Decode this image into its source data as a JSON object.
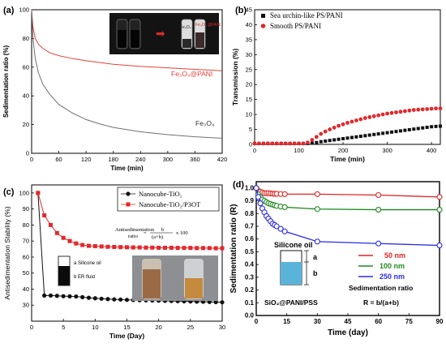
{
  "chart_data": [
    {
      "panel": "(a)",
      "type": "line",
      "xlabel": "Time (min)",
      "ylabel": "Sedimentation ratio (%)",
      "xlim": [
        0,
        420
      ],
      "ylim": [
        0,
        100
      ],
      "xticks": [
        0,
        60,
        120,
        180,
        240,
        300,
        360,
        420
      ],
      "yticks": [
        0,
        20,
        40,
        60,
        80,
        100
      ],
      "series": [
        {
          "name": "Fe3O4@PANI",
          "color": "#e8413c",
          "x": [
            0,
            3,
            8,
            15,
            25,
            40,
            60,
            90,
            120,
            180,
            240,
            300,
            360,
            420
          ],
          "y": [
            100,
            88,
            80,
            76,
            73,
            70,
            68,
            66,
            64.5,
            62,
            60.5,
            59.5,
            58.5,
            57.5
          ]
        },
        {
          "name": "Fe3O4",
          "color": "#707070",
          "x": [
            0,
            3,
            8,
            15,
            25,
            40,
            60,
            90,
            120,
            150,
            180,
            240,
            300,
            360,
            420
          ],
          "y": [
            100,
            80,
            66,
            56,
            48,
            41,
            34,
            28,
            23.5,
            20.5,
            18,
            15,
            13,
            11.5,
            10.5
          ]
        }
      ],
      "labels": [
        "Fe3O4@PANI",
        "Fe3O4"
      ],
      "inset_labels": [
        "Fe3O4",
        "Fe3O4 @PANI"
      ]
    },
    {
      "panel": "(b)",
      "type": "scatter",
      "xlabel": "Time (min)",
      "ylabel": "Transmission (%)",
      "xlim": [
        0,
        420
      ],
      "ylim": [
        0,
        45
      ],
      "xticks": [
        0,
        100,
        200,
        300,
        400
      ],
      "yticks": [
        0,
        5,
        10,
        15,
        20,
        25,
        30,
        35,
        40,
        45
      ],
      "legend": "top-left",
      "series": [
        {
          "name": "Sea urchin-like PS/PANI",
          "color": "#111111",
          "marker": "square",
          "x": [
            0,
            10,
            20,
            30,
            40,
            50,
            60,
            70,
            80,
            90,
            100,
            110,
            120,
            130,
            140,
            150,
            160,
            170,
            180,
            190,
            200,
            210,
            220,
            230,
            240,
            250,
            260,
            270,
            280,
            290,
            300,
            310,
            320,
            330,
            340,
            350,
            360,
            370,
            380,
            390,
            400,
            410,
            420
          ],
          "y": [
            0.3,
            0.3,
            0.3,
            0.3,
            0.3,
            0.3,
            0.3,
            0.3,
            0.3,
            0.3,
            0.3,
            0.3,
            0.3,
            0.4,
            0.6,
            0.9,
            1.1,
            1.3,
            1.5,
            1.7,
            1.9,
            2.1,
            2.3,
            2.5,
            2.7,
            2.9,
            3.1,
            3.3,
            3.5,
            3.7,
            3.9,
            4.1,
            4.3,
            4.5,
            4.7,
            4.9,
            5.1,
            5.3,
            5.5,
            5.7,
            5.9,
            6.0,
            6.1
          ]
        },
        {
          "name": "Smooth PS/PANI",
          "color": "#e3272b",
          "marker": "circle",
          "x": [
            0,
            10,
            20,
            30,
            40,
            50,
            60,
            70,
            80,
            90,
            100,
            110,
            120,
            130,
            140,
            150,
            160,
            170,
            180,
            190,
            200,
            210,
            220,
            230,
            240,
            250,
            260,
            270,
            280,
            290,
            300,
            310,
            320,
            330,
            340,
            350,
            360,
            370,
            380,
            390,
            400,
            410,
            420
          ],
          "y": [
            0.3,
            0.3,
            0.3,
            0.3,
            0.3,
            0.3,
            0.3,
            0.3,
            0.3,
            0.3,
            0.3,
            0.3,
            0.6,
            1.5,
            2.5,
            3.5,
            4.3,
            5,
            5.6,
            6.2,
            6.7,
            7.2,
            7.6,
            8,
            8.4,
            8.8,
            9.1,
            9.4,
            9.7,
            10,
            10.3,
            10.5,
            10.7,
            10.9,
            11.1,
            11.3,
            11.5,
            11.6,
            11.7,
            11.8,
            11.9,
            12.0,
            12.0
          ]
        }
      ]
    },
    {
      "panel": "(c)",
      "type": "line",
      "xlabel": "Time (Day)",
      "ylabel": "Antisedimentation Stability (%)",
      "xlim": [
        0,
        30
      ],
      "ylim": [
        20,
        105
      ],
      "xticks": [
        0,
        5,
        10,
        15,
        20,
        25,
        30
      ],
      "yticks": [
        30,
        40,
        50,
        60,
        70,
        80,
        90,
        100
      ],
      "legend": "top-right",
      "series": [
        {
          "name": "Nanocube-TiO2",
          "color": "#111111",
          "marker": "circle",
          "x": [
            1,
            2,
            3,
            4,
            5,
            6,
            7,
            8,
            9,
            10,
            11,
            12,
            13,
            14,
            15,
            16,
            17,
            18,
            19,
            20,
            21,
            22,
            23,
            24,
            25,
            26,
            27,
            28,
            29,
            30
          ],
          "y": [
            100,
            36,
            36,
            35.8,
            35.6,
            35.5,
            35.4,
            35,
            34.6,
            34.3,
            34,
            33.8,
            33.6,
            33.5,
            33.3,
            33.2,
            33.1,
            33,
            32.9,
            32.8,
            32.7,
            32.6,
            32.5,
            32.4,
            32.3,
            32.2,
            32.1,
            32,
            31.9,
            31.8
          ]
        },
        {
          "name": "Nanocube-TiO2/P3OT",
          "color": "#e3272b",
          "marker": "square",
          "x": [
            1,
            2,
            3,
            4,
            5,
            6,
            7,
            8,
            9,
            10,
            11,
            12,
            13,
            14,
            15,
            16,
            17,
            18,
            19,
            20,
            21,
            22,
            23,
            24,
            25,
            26,
            27,
            28,
            29,
            30
          ],
          "y": [
            100,
            86,
            80,
            75,
            72,
            70,
            68.5,
            67.5,
            67,
            66.8,
            66.6,
            66.4,
            66.3,
            66.2,
            66.1,
            66,
            66,
            65.9,
            65.9,
            65.8,
            65.8,
            65.8,
            65.7,
            65.7,
            65.7,
            65.6,
            65.6,
            65.6,
            65.5,
            65.5
          ]
        }
      ],
      "formula": {
        "lhs": "Antisedimentation ratio",
        "num": "b",
        "den": "(a+b)",
        "tail": "x 100"
      },
      "inset_labels": [
        "a Silicone oil",
        "b ER fluid"
      ]
    },
    {
      "panel": "(d)",
      "type": "line",
      "xlabel": "Time (day)",
      "ylabel": "Sedimentation ratio (R)",
      "xlim": [
        0,
        90
      ],
      "ylim": [
        0.0,
        1.05
      ],
      "xticks": [
        0,
        15,
        30,
        45,
        60,
        75,
        90
      ],
      "yticks": [
        0.0,
        0.1,
        0.2,
        0.3,
        0.4,
        0.5,
        0.6,
        0.7,
        0.8,
        0.9,
        1.0
      ],
      "series": [
        {
          "name": "50 nm",
          "color": "#e02424",
          "marker": "circle",
          "x": [
            0,
            1,
            2,
            3,
            4,
            5,
            6,
            7,
            8,
            9,
            10,
            12,
            14,
            30,
            60,
            90
          ],
          "y": [
            1.0,
            0.98,
            0.97,
            0.965,
            0.96,
            0.96,
            0.96,
            0.958,
            0.956,
            0.955,
            0.955,
            0.953,
            0.952,
            0.952,
            0.945,
            0.93
          ]
        },
        {
          "name": "100 nm",
          "color": "#1f8a1f",
          "marker": "circle",
          "x": [
            0,
            1,
            2,
            3,
            4,
            5,
            6,
            7,
            8,
            9,
            10,
            12,
            14,
            30,
            60,
            90
          ],
          "y": [
            1.0,
            0.95,
            0.93,
            0.91,
            0.9,
            0.89,
            0.88,
            0.875,
            0.87,
            0.865,
            0.86,
            0.855,
            0.85,
            0.835,
            0.83,
            0.83
          ]
        },
        {
          "name": "250 nm",
          "color": "#2a2ae8",
          "marker": "circle",
          "x": [
            0,
            1,
            2,
            3,
            4,
            5,
            6,
            7,
            8,
            9,
            10,
            12,
            14,
            30,
            60,
            90
          ],
          "y": [
            1.0,
            0.93,
            0.88,
            0.84,
            0.81,
            0.78,
            0.76,
            0.74,
            0.72,
            0.71,
            0.7,
            0.68,
            0.66,
            0.58,
            0.565,
            0.55
          ]
        }
      ],
      "annotations": [
        "Silicone oil",
        "a",
        "b",
        "Sedimentation ratio",
        "R = b/(a+b)",
        "SiO2@PANI/PSS"
      ]
    }
  ],
  "text": {
    "a_label": "(a)",
    "b_label": "(b)",
    "c_label": "(c)",
    "d_label": "(d)",
    "a_fe3o4_pani": "Fe₃O₄@PANI",
    "a_fe3o4": "Fe₃O₄",
    "a_inset_left": "Fe₃O₄",
    "a_inset_right": "Fe₃O₄ @PANI",
    "b_leg1": "Sea urchin-like PS/PANI",
    "b_leg2": "Smooth PS/PANI",
    "c_leg1": "Nanocube-TiO₂",
    "c_leg2": "Nanocube-TiO₂/P3OT",
    "c_formula_lhs1": "Antisedimentation",
    "c_formula_lhs2": "ratio",
    "c_formula_num": "b",
    "c_formula_den": "(a+b)",
    "c_formula_tail": "x 100",
    "c_inset_a": "a Silicone oil",
    "c_inset_b": "b ER fluid",
    "d_silicone": "Silicone oil",
    "d_a": "a",
    "d_b": "b",
    "d_sed1": "Sedimentation ratio",
    "d_sed2": "R = b/(a+b)",
    "d_particle": "SiO₂@PANI/PSS",
    "d_leg1": "50 nm",
    "d_leg2": "100 nm",
    "d_leg3": "250 nm"
  }
}
